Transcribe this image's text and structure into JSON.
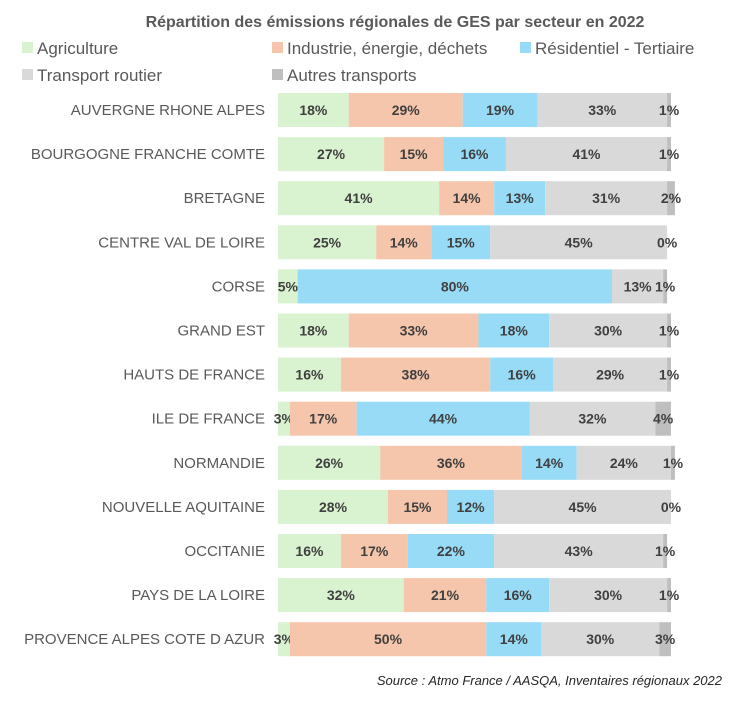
{
  "chart_data": {
    "type": "bar",
    "orientation": "horizontal",
    "stacked": "100%",
    "title": "Répartition des émissions régionales de GES par secteur en 2022",
    "source": "Source : Atmo France / AASQA, Inventaires régionaux 2022",
    "legend_position": "top",
    "grid": false,
    "categories": [
      "AUVERGNE RHONE ALPES",
      "BOURGOGNE FRANCHE COMTE",
      "BRETAGNE",
      "CENTRE VAL DE LOIRE",
      "CORSE",
      "GRAND EST",
      "HAUTS DE FRANCE",
      "ILE DE FRANCE",
      "NORMANDIE",
      "NOUVELLE AQUITAINE",
      "OCCITANIE",
      "PAYS DE LA LOIRE",
      "PROVENCE ALPES COTE D AZUR"
    ],
    "series": [
      {
        "name": "Agriculture",
        "color": "#d9f2d0",
        "values": [
          18,
          27,
          41,
          25,
          5,
          18,
          16,
          3,
          26,
          28,
          16,
          32,
          3
        ]
      },
      {
        "name": "Industrie, énergie, déchets",
        "color": "#f5c6ab",
        "values": [
          29,
          15,
          14,
          14,
          0,
          33,
          38,
          17,
          36,
          15,
          17,
          21,
          50
        ]
      },
      {
        "name": "Résidentiel - Tertiaire",
        "color": "#97dbf6",
        "values": [
          19,
          16,
          13,
          15,
          80,
          18,
          16,
          44,
          14,
          12,
          22,
          16,
          14
        ]
      },
      {
        "name": "Transport routier",
        "color": "#d9d9d9",
        "values": [
          33,
          41,
          31,
          45,
          13,
          30,
          29,
          32,
          24,
          45,
          43,
          30,
          30
        ]
      },
      {
        "name": "Autres transports",
        "color": "#bfbfbf",
        "values": [
          1,
          1,
          2,
          0,
          1,
          1,
          1,
          4,
          1,
          0,
          1,
          1,
          3
        ]
      }
    ]
  }
}
